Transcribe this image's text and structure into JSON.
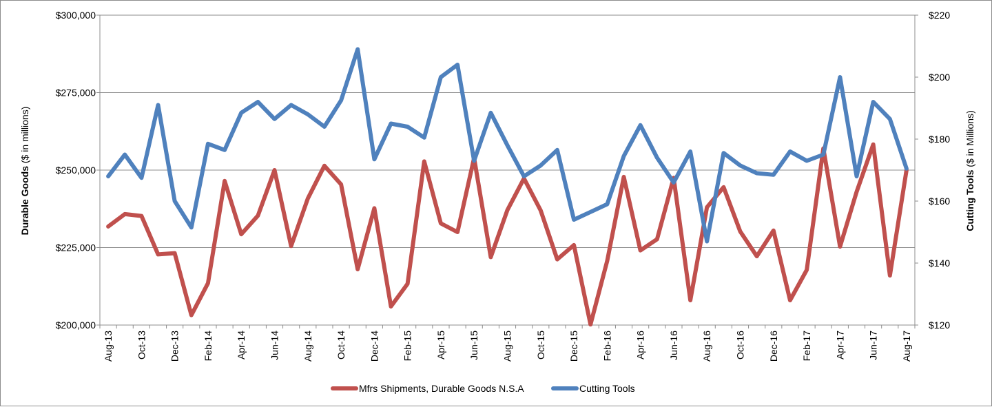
{
  "chart_data": {
    "type": "line",
    "title": "",
    "xlabel": "",
    "y_left": {
      "label_bold": "Durable Goods",
      "label_rest": " ($ in millions)",
      "range": [
        200000,
        300000
      ],
      "ticks": [
        200000,
        225000,
        250000,
        275000,
        300000
      ],
      "tick_labels": [
        "$200,000",
        "$225,000",
        "$250,000",
        "$275,000",
        "$300,000"
      ]
    },
    "y_right": {
      "label_bold": "Cutting Tools",
      "label_rest": " ($ in Millions)",
      "range": [
        120,
        220
      ],
      "ticks": [
        120,
        140,
        160,
        180,
        200,
        220
      ],
      "tick_labels": [
        "$120",
        "$140",
        "$160",
        "$180",
        "$200",
        "$220"
      ]
    },
    "grid": true,
    "legend_position": "bottom",
    "categories": [
      "Aug-13",
      "Sep-13",
      "Oct-13",
      "Nov-13",
      "Dec-13",
      "Jan-14",
      "Feb-14",
      "Mar-14",
      "Apr-14",
      "May-14",
      "Jun-14",
      "Jul-14",
      "Aug-14",
      "Sep-14",
      "Oct-14",
      "Nov-14",
      "Dec-14",
      "Jan-15",
      "Feb-15",
      "Mar-15",
      "Apr-15",
      "May-15",
      "Jun-15",
      "Jul-15",
      "Aug-15",
      "Sep-15",
      "Oct-15",
      "Nov-15",
      "Dec-15",
      "Jan-16",
      "Feb-16",
      "Mar-16",
      "Apr-16",
      "May-16",
      "Jun-16",
      "Jul-16",
      "Aug-16",
      "Sep-16",
      "Oct-16",
      "Nov-16",
      "Dec-16",
      "Jan-17",
      "Feb-17",
      "Mar-17",
      "Apr-17",
      "May-17",
      "Jun-17",
      "Jul-17",
      "Aug-17"
    ],
    "x_tick_labels": [
      "Aug-13",
      "",
      "Oct-13",
      "",
      "Dec-13",
      "",
      "Feb-14",
      "",
      "Apr-14",
      "",
      "Jun-14",
      "",
      "Aug-14",
      "",
      "Oct-14",
      "",
      "Dec-14",
      "",
      "Feb-15",
      "",
      "Apr-15",
      "",
      "Jun-15",
      "",
      "Aug-15",
      "",
      "Oct-15",
      "",
      "Dec-15",
      "",
      "Feb-16",
      "",
      "Apr-16",
      "",
      "Jun-16",
      "",
      "Aug-16",
      "",
      "Oct-16",
      "",
      "Dec-16",
      "",
      "Feb-17",
      "",
      "Apr-17",
      "",
      "Jun-17",
      "",
      "Aug-17"
    ],
    "series": [
      {
        "name": "Mfrs Shipments, Durable Goods N.S.A",
        "axis": "left",
        "color": "#C0504D",
        "values": [
          231800,
          235800,
          235200,
          222800,
          223200,
          203200,
          213500,
          246500,
          229300,
          235300,
          250000,
          225500,
          240800,
          251400,
          245400,
          218000,
          237700,
          206000,
          213300,
          252800,
          232800,
          230000,
          253900,
          221900,
          237100,
          247300,
          237000,
          221200,
          225800,
          200200,
          220700,
          247800,
          224100,
          227700,
          247500,
          208000,
          238000,
          244500,
          230200,
          222200,
          230500,
          208000,
          217800,
          257000,
          225300,
          243000,
          258300,
          216000,
          250000
        ]
      },
      {
        "name": "Cutting Tools",
        "axis": "right",
        "color": "#4F81BD",
        "values": [
          168,
          175,
          167.5,
          191,
          160,
          151.5,
          178.5,
          176.5,
          188.5,
          192,
          186.5,
          191,
          188,
          184,
          192.5,
          209,
          173.5,
          185,
          184,
          180.5,
          200,
          204,
          173,
          188.5,
          178,
          168,
          171.5,
          176.5,
          154,
          156.5,
          159,
          174.5,
          184.5,
          174,
          166,
          176,
          147,
          175.5,
          171.5,
          169,
          168.5,
          176,
          173,
          175,
          200,
          168,
          192,
          186.5,
          170.5
        ]
      }
    ]
  }
}
